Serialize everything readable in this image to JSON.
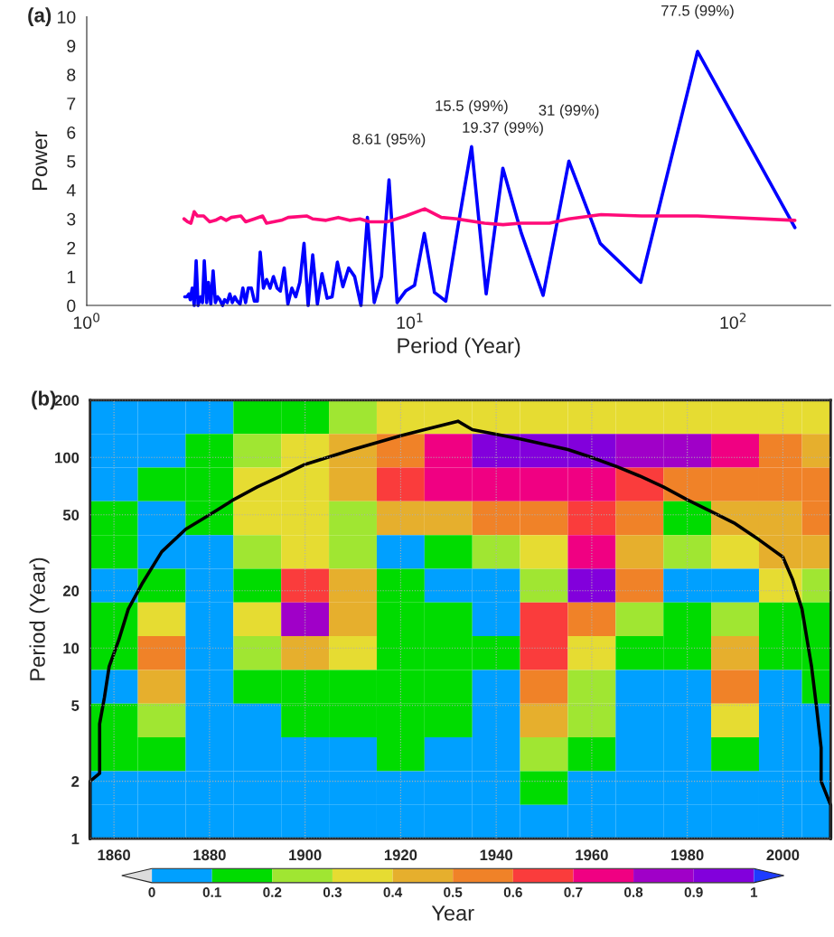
{
  "chart_data": [
    {
      "type": "line",
      "xlabel": "Period (Year)",
      "ylabel": "Power",
      "log": "x",
      "xlim": [
        1,
        200
      ],
      "xticks": [
        {
          "value": 1,
          "label": "10$^{0}$"
        },
        {
          "value": 10,
          "label": "10$^{1}$"
        },
        {
          "value": 100,
          "label": "10$^{2}$"
        }
      ],
      "ylim": [
        0,
        10
      ],
      "yticks": [
        0,
        1,
        2,
        3,
        4,
        5,
        6,
        7,
        8,
        9,
        10
      ],
      "grid": false,
      "legend": false,
      "line_style": "solid",
      "series": [
        {
          "color": "#0000ff",
          "x": [
            155,
            77.5,
            51.7,
            38.75,
            31,
            25.8,
            22.1,
            19.37,
            17.2,
            15.5,
            14.1,
            12.9,
            11.9,
            11.07,
            10.33,
            9.69,
            9.12,
            8.61,
            8.16,
            7.75,
            7.38,
            7.05,
            6.74,
            6.46,
            6.2,
            5.96,
            5.74,
            5.54,
            5.34,
            5.17,
            5.0,
            4.84,
            4.7,
            4.56,
            4.43,
            4.31,
            4.19,
            4.08,
            3.97,
            3.88,
            3.78,
            3.69,
            3.6,
            3.52,
            3.44,
            3.37,
            3.3,
            3.23,
            3.16,
            3.1,
            3.04,
            2.98,
            2.92,
            2.87,
            2.82,
            2.77,
            2.72,
            2.67,
            2.63,
            2.58,
            2.54,
            2.5,
            2.46,
            2.42,
            2.38,
            2.35,
            2.31,
            2.28,
            2.25,
            2.21,
            2.18,
            2.15,
            2.12,
            2.09,
            2.07,
            2.04,
            2.01
          ],
          "values": [
            2.7,
            8.8,
            0.8,
            2.15,
            5.0,
            0.35,
            2.5,
            4.75,
            0.4,
            5.5,
            2.8,
            0.15,
            0.45,
            2.5,
            0.7,
            0.5,
            0.1,
            4.35,
            1.0,
            0.1,
            3.05,
            0,
            1.0,
            1.3,
            0.65,
            1.5,
            0.3,
            0.25,
            1.1,
            0.05,
            1.75,
            0,
            2.15,
            0.8,
            0.3,
            0.6,
            0.05,
            1.3,
            0.5,
            0.6,
            1.0,
            0.6,
            0.9,
            0.6,
            1.85,
            0.15,
            0.15,
            0.6,
            0.6,
            0.1,
            0.6,
            0.05,
            0.15,
            0.3,
            0.1,
            0.4,
            0.1,
            0.2,
            0,
            0.2,
            0.3,
            0.1,
            1.2,
            0.05,
            0.8,
            0.1,
            1.55,
            0.1,
            0.3,
            0,
            1.55,
            0,
            0.6,
            0.2,
            0.4,
            0.3,
            0.3
          ]
        },
        {
          "color": "#ff0a78",
          "x": [
            2.0,
            2.05,
            2.1,
            2.15,
            2.2,
            2.3,
            2.4,
            2.5,
            2.6,
            2.7,
            2.8,
            3.0,
            3.1,
            3.3,
            3.5,
            3.6,
            4.0,
            4.2,
            4.8,
            5.0,
            5.5,
            6.0,
            6.5,
            7.0,
            7.5,
            8.5,
            9.7,
            11.1,
            12.5,
            14,
            17,
            19.4,
            22,
            27,
            31,
            39,
            52,
            77.5,
            155
          ],
          "values": [
            3.0,
            2.9,
            2.85,
            3.25,
            3.1,
            3.1,
            2.9,
            2.95,
            3.05,
            2.95,
            3.05,
            3.1,
            2.9,
            3.0,
            3.1,
            2.85,
            2.95,
            3.05,
            3.1,
            3.0,
            2.95,
            3.05,
            2.95,
            3.0,
            2.9,
            2.9,
            3.1,
            3.35,
            3.05,
            3.0,
            2.85,
            2.8,
            2.85,
            2.85,
            3.0,
            3.15,
            3.1,
            3.1,
            2.95
          ]
        }
      ],
      "annotations": [
        "(a)",
        {
          "text": "8.61 (95%)",
          "x": 8.61,
          "y": 4.35
        },
        {
          "text": "15.5 (99%)",
          "x": 15.5,
          "y": 5.5
        },
        {
          "text": "19.37 (99%)",
          "x": 19.37,
          "y": 4.75
        },
        {
          "text": "31 (99%)",
          "x": 31,
          "y": 5.0
        },
        {
          "text": "77.5 (99%)",
          "x": 77.5,
          "y": 8.8
        }
      ]
    },
    {
      "type": "heatmap",
      "ylabel": "Period (Year)",
      "clabel": "Year",
      "log": "y",
      "grid": true,
      "xlim": [
        1855,
        2010
      ],
      "xticks": [
        1860,
        1880,
        1900,
        1920,
        1940,
        1960,
        1980,
        2000
      ],
      "ylim": [
        1,
        200
      ],
      "yticks": [
        1,
        2,
        5,
        10,
        20,
        50,
        100,
        200
      ],
      "clim": [
        0,
        1
      ],
      "cticks": [
        0,
        0.1,
        0.2,
        0.3,
        0.4,
        0.5,
        0.6,
        0.7,
        0.8,
        0.9,
        1
      ],
      "x": [
        1860,
        1870,
        1880,
        1890,
        1900,
        1910,
        1920,
        1930,
        1940,
        1950,
        1960,
        1970,
        1980,
        1990,
        2000,
        2008
      ],
      "cells": [
        [
          0.05,
          0.05,
          0.05,
          0.15,
          0.15,
          0.2,
          0.3,
          0.35,
          0.35,
          0.35,
          0.35,
          0.35,
          0.3,
          0.3,
          0.3,
          0.3
        ],
        [
          0.05,
          0.05,
          0.15,
          0.2,
          0.3,
          0.4,
          0.55,
          0.75,
          0.9,
          0.95,
          0.9,
          0.85,
          0.8,
          0.7,
          0.55,
          0.45
        ],
        [
          0.05,
          0.15,
          0.15,
          0.3,
          0.35,
          0.45,
          0.6,
          0.7,
          0.75,
          0.7,
          0.7,
          0.6,
          0.55,
          0.55,
          0.5,
          0.5
        ],
        [
          0.15,
          0.05,
          0.15,
          0.3,
          0.3,
          0.25,
          0.4,
          0.45,
          0.5,
          0.55,
          0.6,
          0.5,
          0.15,
          0.4,
          0.45,
          0.55
        ],
        [
          0.15,
          0.05,
          0.05,
          0.2,
          0.35,
          0.25,
          0.05,
          0.15,
          0.2,
          0.3,
          0.7,
          0.45,
          0.2,
          0.3,
          0.4,
          0.45
        ],
        [
          0.05,
          0.15,
          0.05,
          0.15,
          0.6,
          0.4,
          0.15,
          0.05,
          0.05,
          0.2,
          0.9,
          0.5,
          0.05,
          0.05,
          0.3,
          0.2
        ],
        [
          0.15,
          0.3,
          0.05,
          0.3,
          0.8,
          0.45,
          0.15,
          0.15,
          0.05,
          0.6,
          0.5,
          0.2,
          0.15,
          0.2,
          0.15,
          0.15
        ],
        [
          0.15,
          0.5,
          0.05,
          0.2,
          0.4,
          0.35,
          0.15,
          0.15,
          0.15,
          0.6,
          0.3,
          0.15,
          0.15,
          0.4,
          0.15,
          0.15
        ],
        [
          0.05,
          0.45,
          0.05,
          0.15,
          0.15,
          0.15,
          0.15,
          0.15,
          0.05,
          0.5,
          0.2,
          0.05,
          0.05,
          0.5,
          0.05,
          0.15
        ],
        [
          0.15,
          0.25,
          0.05,
          0.05,
          0.15,
          0.15,
          0.15,
          0.15,
          0.05,
          0.4,
          0.2,
          0.05,
          0.05,
          0.3,
          0.05,
          0.05
        ],
        [
          0.15,
          0.15,
          0.05,
          0.05,
          0.05,
          0.05,
          0.15,
          0.05,
          0.05,
          0.25,
          0.15,
          0.05,
          0.05,
          0.15,
          0.05,
          0.05
        ],
        [
          0.05,
          0.05,
          0.05,
          0.05,
          0.05,
          0.05,
          0.05,
          0.05,
          0.05,
          0.15,
          0.05,
          0.05,
          0.05,
          0.05,
          0.05,
          0.05
        ],
        [
          0.05,
          0.05,
          0.05,
          0.05,
          0.05,
          0.05,
          0.05,
          0.05,
          0.05,
          0.05,
          0.05,
          0.05,
          0.05,
          0.05,
          0.05,
          0.05
        ]
      ],
      "series": [
        {
          "type": "line",
          "color": "#000000",
          "x": [
            1855,
            1855,
            1857,
            1857,
            1858,
            1859,
            1861,
            1863,
            1866,
            1870,
            1875,
            1880,
            1885,
            1890,
            1895,
            1900,
            1910,
            1920,
            1925,
            1932,
            1935,
            1945,
            1955,
            1960,
            1965,
            1970,
            1975,
            1980,
            1985,
            1990,
            1995,
            2000,
            2002,
            2004,
            2006,
            2007,
            2008,
            2008,
            2010,
            2010
          ],
          "values": [
            1,
            2,
            2.2,
            4,
            5.5,
            8,
            11,
            16,
            22,
            32,
            42,
            50,
            60,
            70,
            80,
            92,
            110,
            130,
            140,
            155,
            140,
            125,
            110,
            100,
            90,
            80,
            70,
            60,
            52,
            45,
            37,
            30,
            23,
            16,
            8,
            5,
            3,
            2,
            1.5,
            1
          ]
        }
      ],
      "annotations": [
        "(b)"
      ]
    }
  ]
}
